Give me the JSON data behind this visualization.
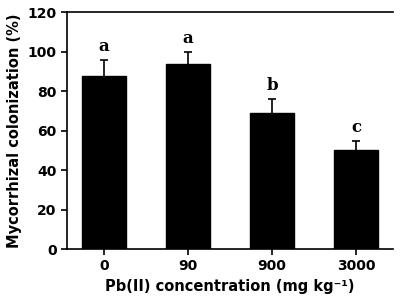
{
  "categories": [
    "0",
    "90",
    "900",
    "3000"
  ],
  "values": [
    88,
    94,
    69,
    50
  ],
  "errors": [
    8,
    6,
    7,
    5
  ],
  "sig_labels": [
    "a",
    "a",
    "b",
    "c"
  ],
  "bar_color": "#000000",
  "bar_width": 0.52,
  "ylabel": "Mycorrhizal colonization (%)",
  "xlabel": "Pb(II) concentration (mg kg⁻¹)",
  "ylim": [
    0,
    120
  ],
  "yticks": [
    0,
    20,
    40,
    60,
    80,
    100,
    120
  ],
  "background_color": "#ffffff",
  "sig_fontsize": 12,
  "axis_label_fontsize": 10.5,
  "tick_fontsize": 10,
  "capsize": 3,
  "error_linewidth": 1.2
}
